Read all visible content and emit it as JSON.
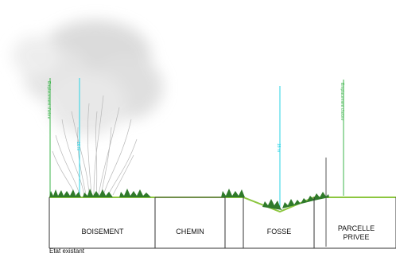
{
  "zones": {
    "boisement": "BOISEMENT",
    "chemin": "CHEMIN",
    "fosse": "FOSSE",
    "parcelle_line1": "PARCELLE",
    "parcelle_line2": "PRIVEE"
  },
  "markers": {
    "emprise_left": "Emplacement d'arbre",
    "emprise_right": "Emplacement d'arbre",
    "height_left": "16 m",
    "height_ditch": "18 m"
  },
  "caption": "Etat existant",
  "colors": {
    "ground_line": "#8cc63f",
    "grass": "#2f7a2a",
    "cyan_marker": "#27d3e6",
    "green_marker": "#3cb44b",
    "frame": "#333333"
  }
}
